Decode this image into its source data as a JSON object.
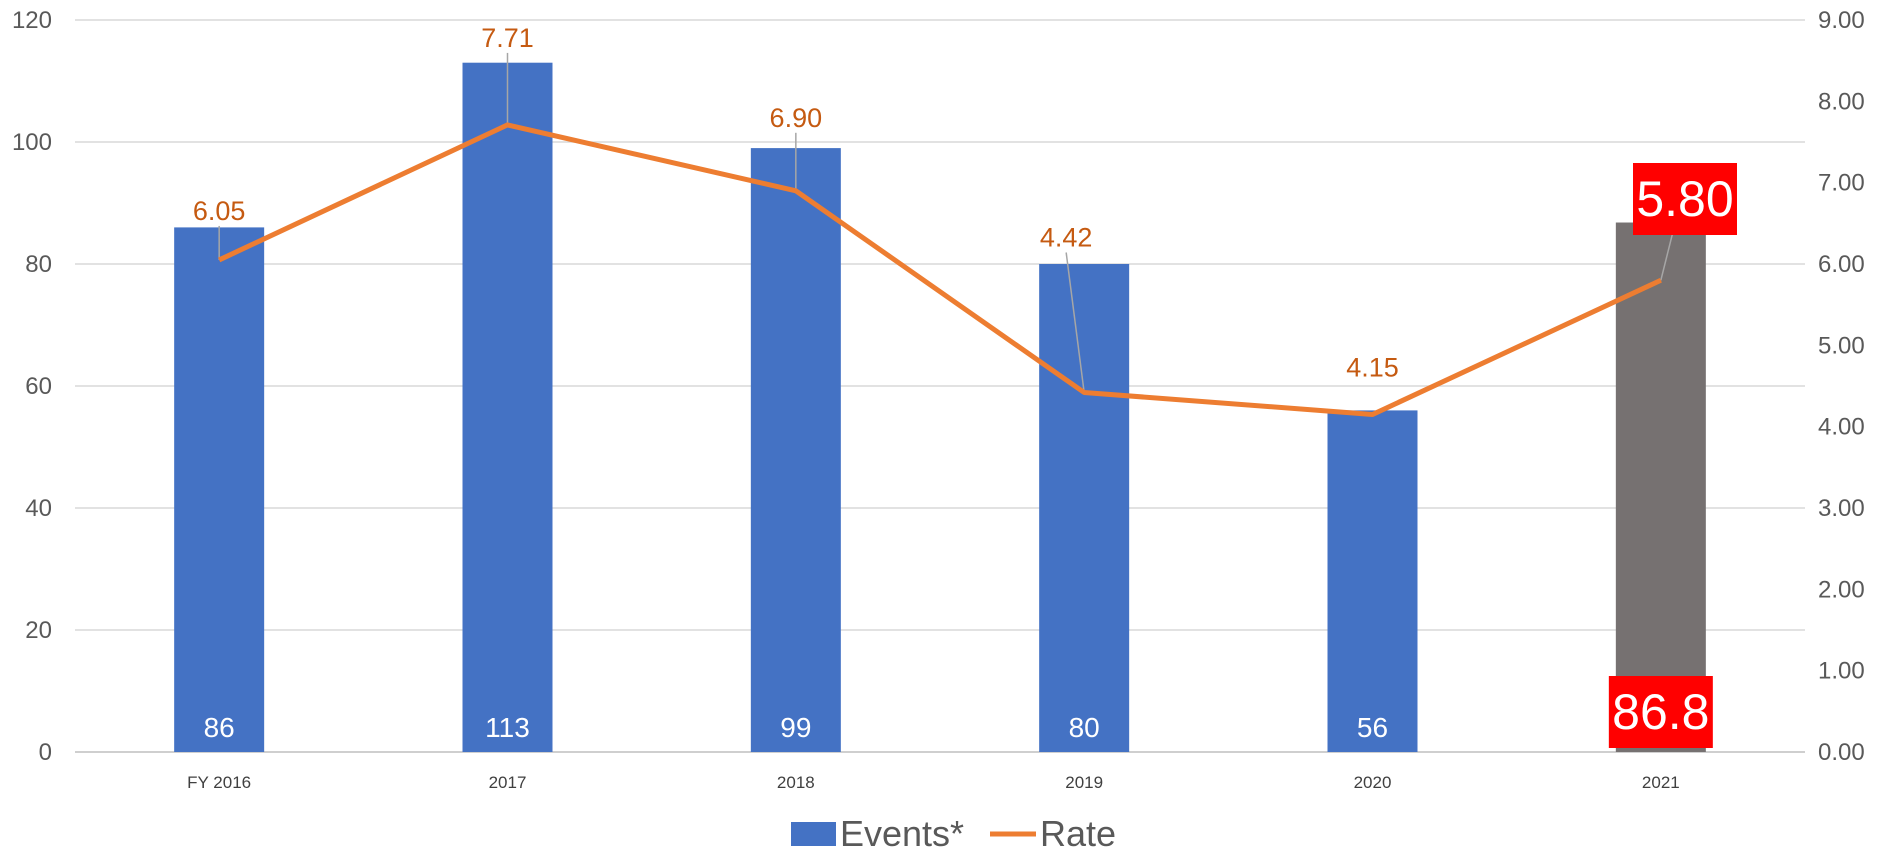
{
  "chart_data": {
    "type": "bar",
    "categories": [
      "FY 2016",
      "2017",
      "2018",
      "2019",
      "2020",
      "2021"
    ],
    "series": [
      {
        "name": "Events*",
        "type": "bar",
        "axis": "left",
        "values": [
          86,
          113,
          99,
          80,
          56,
          86.8
        ],
        "labels": [
          "86",
          "113",
          "99",
          "80",
          "56",
          "86.8"
        ],
        "color": "#4472c4",
        "highlight_color": "#767171"
      },
      {
        "name": "Rate",
        "type": "line",
        "axis": "right",
        "values": [
          6.05,
          7.71,
          6.9,
          4.42,
          4.15,
          5.8
        ],
        "labels": [
          "6.05",
          "7.71",
          "6.90",
          "4.42",
          "4.15",
          "5.80"
        ],
        "color": "#ed7d31",
        "label_color": "#c55a11"
      }
    ],
    "highlight_index": 5,
    "highlight_label_bg": "#ff0000",
    "y_left": {
      "range": [
        0,
        120
      ],
      "ticks": [
        "0",
        "20",
        "40",
        "60",
        "80",
        "100",
        "120"
      ]
    },
    "y_right": {
      "range": [
        0,
        9
      ],
      "ticks": [
        "0.00",
        "1.00",
        "2.00",
        "3.00",
        "4.00",
        "5.00",
        "6.00",
        "7.00",
        "8.00",
        "9.00"
      ]
    },
    "grid": true,
    "grid_color": "#d9d9d9",
    "legend": {
      "position": "bottom",
      "entries": [
        "Events*",
        "Rate"
      ]
    }
  }
}
